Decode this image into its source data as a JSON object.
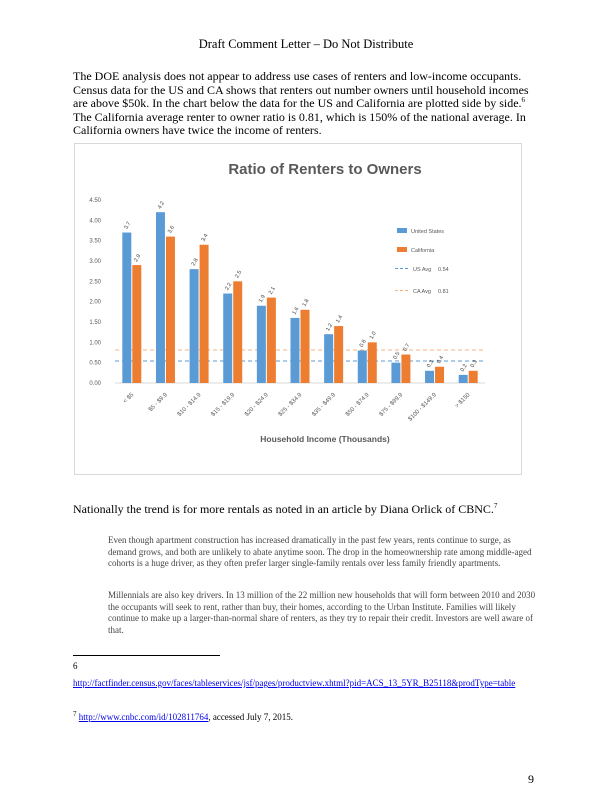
{
  "header": {
    "title": "Draft Comment Letter – Do Not Distribute"
  },
  "body": {
    "para1_a": "The DOE analysis does not appear to address use cases of renters and low-income occupants. Census data for the US and CA shows that renters out number owners until household incomes are above $50k.    In the chart below the data for the US and California are plotted side by side.",
    "para1_sup": "6",
    "para1_b": " The California average renter to owner ratio is 0.81, which is 150% of the national average. In California owners have twice the income of renters.",
    "para2_a": "Nationally the trend is for more rentals as noted in an article by Diana Orlick of CBNC.",
    "para2_sup": "7",
    "quote1": "Even though apartment construction has increased dramatically in the past few years, rents continue to surge, as demand grows, and both are unlikely to abate anytime soon. The drop in the homeownership rate among middle-aged cohorts is a huge driver, as they often prefer larger single-family rentals over less family friendly apartments.",
    "quote2": "Millennials are also key drivers. In 13 million of the 22 million new households that will form between 2010 and 2030 the occupants will seek to rent, rather than buy, their homes, according to the Urban Institute. Families will likely continue to make up a larger-than-normal share of renters, as they try to repair their credit. Investors are well aware of that."
  },
  "footnotes": {
    "fn6_num": "6",
    "fn6_url": "http://factfinder.census.gov/faces/tableservices/jsf/pages/productview.xhtml?pid=ACS_13_5YR_B25118&prodType=table",
    "fn7_num": "7",
    "fn7_url": "http://www.cnbc.com/id/102811764",
    "fn7_rest": ", accessed July 7, 2015."
  },
  "page_number": "9",
  "chart_data": {
    "type": "bar",
    "title": "Ratio of Renters to Owners",
    "xlabel": "Household Income (Thousands)",
    "ylabel": "",
    "ylim": [
      0,
      4.5
    ],
    "yticks": [
      "0.00",
      "0.50",
      "1.00",
      "1.50",
      "2.00",
      "2.50",
      "3.00",
      "3.50",
      "4.00",
      "4.50"
    ],
    "categories": [
      "< $5",
      "$5 - $9.9",
      "$10 - $14.9",
      "$15 - $19.9",
      "$20 - $24.9",
      "$25 - $34.9",
      "$35 - $49.9",
      "$50 - $74.9",
      "$75 - $99.9",
      "$100 - $149.9",
      "> $150"
    ],
    "series": [
      {
        "name": "United States",
        "color": "#5b9bd5",
        "values": [
          3.7,
          4.2,
          2.8,
          2.2,
          1.9,
          1.6,
          1.2,
          0.8,
          0.5,
          0.3,
          0.2
        ],
        "labels": [
          "3.7",
          "4.2",
          "2.8",
          "2.2",
          "1.9",
          "1.6",
          "1.2",
          "0.8",
          "0.5",
          "0.3",
          "0.2"
        ]
      },
      {
        "name": "California",
        "color": "#ed7d31",
        "values": [
          2.9,
          3.6,
          3.4,
          2.5,
          2.1,
          1.8,
          1.4,
          1.0,
          0.7,
          0.4,
          0.3
        ],
        "labels": [
          "2.9",
          "3.6",
          "3.4",
          "2.5",
          "2.1",
          "1.8",
          "1.4",
          "1.0",
          "0.7",
          "0.4",
          "0.3"
        ]
      }
    ],
    "reference_lines": [
      {
        "name": "US Avg",
        "value": 0.54,
        "label": "0.54",
        "color": "#5b9bd5"
      },
      {
        "name": "CA Avg",
        "value": 0.81,
        "label": "0.81",
        "color": "#f4b183"
      }
    ],
    "legend": "right",
    "grid": false
  }
}
